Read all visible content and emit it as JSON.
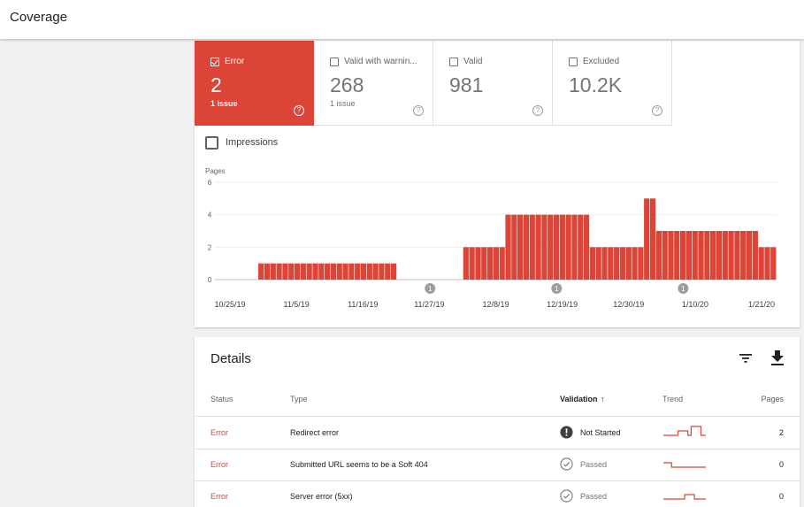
{
  "header": {
    "title": "Coverage"
  },
  "tiles": [
    {
      "label": "Error",
      "value": "2",
      "sub": "1 issue",
      "active": true
    },
    {
      "label": "Valid with warnin...",
      "value": "268",
      "sub": "1 issue",
      "active": false
    },
    {
      "label": "Valid",
      "value": "981",
      "sub": "",
      "active": false
    },
    {
      "label": "Excluded",
      "value": "10.2K",
      "sub": "",
      "active": false
    }
  ],
  "help_glyph": "?",
  "impressions_label": "Impressions",
  "colors": {
    "error": "#db4437",
    "grid": "#eeeeee",
    "axis": "#bdbdbd"
  },
  "chart_data": {
    "type": "bar",
    "ylabel": "Pages",
    "ylim": [
      0,
      6
    ],
    "yticks": [
      0,
      2,
      4,
      6
    ],
    "xtick_labels": [
      "10/25/19",
      "11/5/19",
      "11/16/19",
      "11/27/19",
      "12/8/19",
      "12/19/19",
      "12/30/19",
      "1/10/20",
      "1/21/20"
    ],
    "annotation_label": "1",
    "annotation_bar_indices": [
      33,
      54,
      75
    ],
    "values": [
      0,
      0,
      0,
      0,
      0,
      1,
      1,
      1,
      1,
      1,
      1,
      1,
      1,
      1,
      1,
      1,
      1,
      1,
      1,
      1,
      1,
      1,
      1,
      1,
      1,
      1,
      1,
      1,
      0,
      0,
      0,
      0,
      0,
      0,
      0,
      0,
      0,
      0,
      0,
      2,
      2,
      2,
      2,
      2,
      2,
      2,
      4,
      4,
      4,
      4,
      4,
      4,
      4,
      4,
      4,
      4,
      4,
      4,
      4,
      4,
      2,
      2,
      2,
      2,
      2,
      2,
      2,
      2,
      2,
      5,
      5,
      3,
      3,
      3,
      3,
      3,
      3,
      3,
      3,
      3,
      3,
      3,
      3,
      3,
      3,
      3,
      3,
      3,
      2,
      2,
      2
    ]
  },
  "details": {
    "title": "Details",
    "filter_icon": "filter-icon",
    "download_icon": "download-icon",
    "columns": {
      "status": "Status",
      "type": "Type",
      "validation": "Validation",
      "trend": "Trend",
      "pages": "Pages"
    },
    "sort_arrow": "↑",
    "rows": [
      {
        "status": "Error",
        "type": "Redirect error",
        "validation": "Not Started",
        "validation_icon": "exclamation-icon",
        "pages": "2",
        "trend": [
          0,
          0,
          0,
          0,
          0,
          1,
          1,
          1,
          0,
          2,
          2,
          2,
          0,
          0
        ]
      },
      {
        "status": "Error",
        "type": "Submitted URL seems to be a Soft 404",
        "validation": "Passed",
        "validation_icon": "check-circle-icon",
        "pages": "0",
        "trend": [
          1,
          1,
          1,
          0,
          0,
          0,
          0,
          0,
          0,
          0,
          0,
          0,
          0,
          0
        ]
      },
      {
        "status": "Error",
        "type": "Server error (5xx)",
        "validation": "Passed",
        "validation_icon": "check-circle-icon",
        "pages": "0",
        "trend": [
          0,
          0,
          0,
          0,
          0,
          0,
          0,
          1,
          1,
          1,
          0,
          0,
          0,
          0
        ]
      }
    ]
  }
}
